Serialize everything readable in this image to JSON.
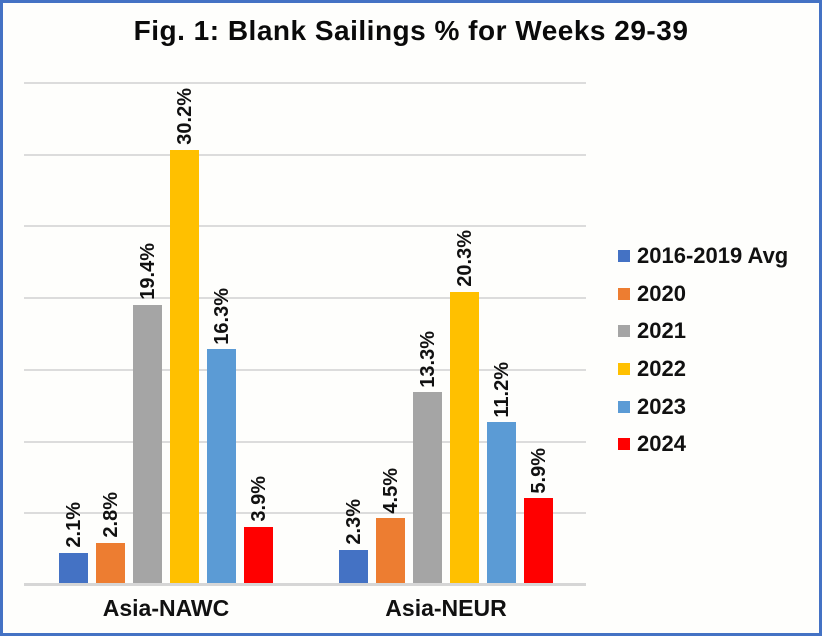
{
  "frame": {
    "border_color": "#4472C4",
    "background_color": "#FEFEFC"
  },
  "chart_data": {
    "type": "bar",
    "title": "Fig. 1: Blank Sailings % for Weeks 29-39",
    "xlabel": "",
    "ylabel": "",
    "categories": [
      "Asia-NAWC",
      "Asia-NEUR"
    ],
    "series": [
      {
        "name": "2016-2019 Avg",
        "color": "#4472C4",
        "values": [
          2.1,
          2.3
        ]
      },
      {
        "name": "2020",
        "color": "#ED7D31",
        "values": [
          2.8,
          4.5
        ]
      },
      {
        "name": "2021",
        "color": "#A5A5A5",
        "values": [
          19.4,
          13.3
        ]
      },
      {
        "name": "2022",
        "color": "#FFC000",
        "values": [
          30.2,
          20.3
        ]
      },
      {
        "name": "2023",
        "color": "#5B9BD5",
        "values": [
          16.3,
          11.2
        ]
      },
      {
        "name": "2024",
        "color": "#FF0000",
        "values": [
          3.9,
          5.9
        ]
      }
    ],
    "data_labels": {
      "Asia-NAWC": [
        "2.1%",
        "2.8%",
        "19.4%",
        "30.2%",
        "16.3%",
        "3.9%"
      ],
      "Asia-NEUR": [
        "2.3%",
        "4.5%",
        "13.3%",
        "20.3%",
        "11.2%",
        "5.9%"
      ]
    },
    "value_label_format": "{v}%",
    "value_label_rotation": 90,
    "ylim": [
      0,
      35
    ],
    "grid_step": 5,
    "grid_color": "#DCDCDC",
    "axis_line_color": "#D6D6D6",
    "grid": "horizontal-only",
    "y_axis_tick_labels": "none",
    "legend_position": "right"
  }
}
